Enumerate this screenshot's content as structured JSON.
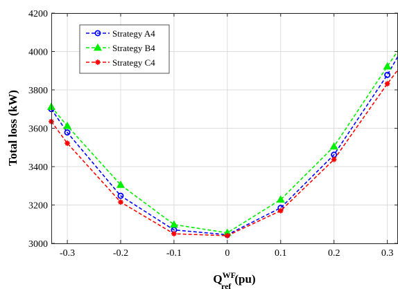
{
  "chart_data": {
    "type": "line",
    "title": "",
    "xlabel": {
      "main": "Q",
      "sup": "WF",
      "sub": "ref",
      "unit": "(pu)"
    },
    "ylabel": "Total loss (kW)",
    "xlim": [
      -0.33,
      0.32
    ],
    "ylim": [
      3000,
      4200
    ],
    "xticks": [
      -0.3,
      -0.2,
      -0.1,
      0,
      0.1,
      0.2,
      0.3
    ],
    "xtick_labels": [
      "-0.3",
      "-0.2",
      "-0.1",
      "0",
      "0.1",
      "0.2",
      "0.3"
    ],
    "yticks": [
      3000,
      3200,
      3400,
      3600,
      3800,
      4000,
      4200
    ],
    "ytick_labels": [
      "3000",
      "3200",
      "3400",
      "3600",
      "3800",
      "4000",
      "4200"
    ],
    "grid": true,
    "legend_position": "top-left",
    "series": [
      {
        "name": "Strategy A4",
        "color": "#0000ff",
        "marker": "circle",
        "x": [
          -0.33,
          -0.3,
          -0.2,
          -0.1,
          0,
          0.1,
          0.2,
          0.3,
          0.32
        ],
        "y": [
          3700,
          3578,
          3248,
          3070,
          3045,
          3185,
          3462,
          3878,
          3975
        ],
        "marker_idx": [
          0,
          1,
          2,
          3,
          4,
          5,
          6,
          7
        ]
      },
      {
        "name": "Strategy B4",
        "color": "#00ee00",
        "marker": "triangle",
        "x": [
          -0.33,
          -0.3,
          -0.2,
          -0.1,
          0,
          0.1,
          0.2,
          0.3,
          0.32
        ],
        "y": [
          3712,
          3612,
          3305,
          3098,
          3055,
          3228,
          3505,
          3922,
          4005
        ],
        "marker_idx": [
          0,
          1,
          2,
          3,
          4,
          5,
          6,
          7
        ]
      },
      {
        "name": "Strategy C4",
        "color": "#ff0000",
        "marker": "asterisk",
        "x": [
          -0.33,
          -0.3,
          -0.2,
          -0.1,
          0,
          0.1,
          0.2,
          0.3,
          0.32
        ],
        "y": [
          3635,
          3522,
          3215,
          3050,
          3040,
          3170,
          3437,
          3832,
          3905
        ],
        "marker_idx": [
          0,
          1,
          2,
          3,
          4,
          5,
          6,
          7
        ]
      }
    ]
  }
}
